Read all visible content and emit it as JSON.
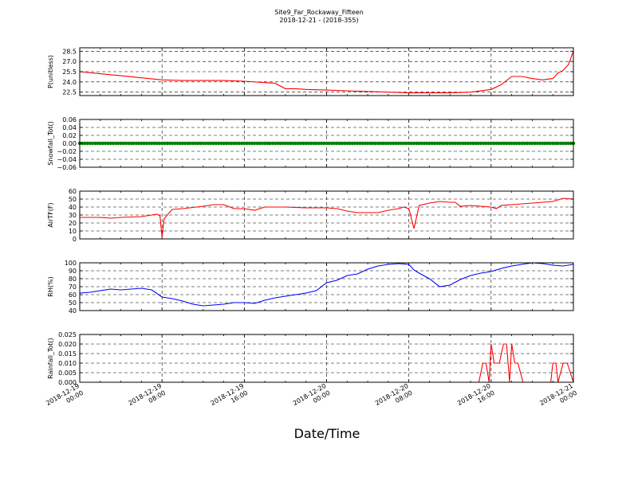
{
  "header": {
    "title": "Site9_Far_Rockaway_Fifteen",
    "subtitle": "2018-12-21 - (2018-355)"
  },
  "x_axis_label": "Date/Time",
  "x_ticks": [
    {
      "line1": "2018-12-19",
      "line2": "00:00"
    },
    {
      "line1": "2018-12-19",
      "line2": "08:00"
    },
    {
      "line1": "2018-12-19",
      "line2": "16:00"
    },
    {
      "line1": "2018-12-20",
      "line2": "00:00"
    },
    {
      "line1": "2018-12-20",
      "line2": "08:00"
    },
    {
      "line1": "2018-12-20",
      "line2": "16:00"
    },
    {
      "line1": "2018-12-21",
      "line2": "00:00"
    }
  ],
  "chart_data": [
    {
      "type": "line",
      "ylabel": "P(unitless)",
      "ylim": [
        22.0,
        29.0
      ],
      "yticks": [
        "28.5",
        "27.0",
        "25.5",
        "24.0",
        "22.5"
      ],
      "ytick_values": [
        28.5,
        27.0,
        25.5,
        24.0,
        22.5
      ],
      "color": "#ff0000",
      "grid": true,
      "x_hours": [
        0,
        2,
        4,
        6,
        8,
        10,
        12,
        14,
        16,
        18,
        19,
        20,
        21,
        22,
        24,
        26,
        28,
        30,
        32,
        34,
        36,
        38,
        40,
        41,
        42,
        43,
        44,
        45,
        46,
        46.5,
        47,
        47.5,
        48
      ],
      "values": [
        25.5,
        25.2,
        24.9,
        24.6,
        24.3,
        24.2,
        24.2,
        24.2,
        24.1,
        23.9,
        23.8,
        23.0,
        23.0,
        22.9,
        22.8,
        22.7,
        22.6,
        22.5,
        22.4,
        22.4,
        22.4,
        22.5,
        22.9,
        23.6,
        24.8,
        24.8,
        24.5,
        24.3,
        24.5,
        25.3,
        25.7,
        26.5,
        28.5
      ]
    },
    {
      "type": "line",
      "ylabel": "Snowfall_Tot()",
      "ylim": [
        -0.06,
        0.06
      ],
      "yticks": [
        "0.06",
        "0.04",
        "0.02",
        "0.00",
        "−0.02",
        "−0.04",
        "−0.06"
      ],
      "ytick_values": [
        0.06,
        0.04,
        0.02,
        0.0,
        -0.02,
        -0.04,
        -0.06
      ],
      "color": "#008000",
      "grid": true,
      "marker": "circle",
      "x_hours": [
        0,
        48
      ],
      "values": [
        0.0,
        0.0
      ]
    },
    {
      "type": "line",
      "ylabel": "AirTF(F)",
      "ylim": [
        0,
        60
      ],
      "yticks": [
        "60",
        "50",
        "40",
        "30",
        "20",
        "10",
        "0"
      ],
      "ytick_values": [
        60,
        50,
        40,
        30,
        20,
        10,
        0
      ],
      "color": "#ff0000",
      "grid": true,
      "x_hours": [
        0,
        2,
        3,
        4,
        6,
        7,
        7.5,
        7.8,
        8.0,
        8.2,
        8.5,
        9,
        10,
        12,
        13,
        14,
        15,
        16,
        17,
        18,
        19,
        20,
        22,
        24,
        25,
        26,
        27,
        28,
        29,
        30,
        31,
        31.5,
        32,
        32.5,
        33,
        34,
        35,
        36,
        36.5,
        37,
        38,
        39,
        40,
        40.5,
        41,
        42,
        43,
        44,
        45,
        46,
        47,
        48
      ],
      "values": [
        27,
        27,
        26,
        27,
        28,
        30,
        31,
        29,
        2,
        25,
        30,
        37,
        38,
        41,
        43,
        43,
        38,
        38,
        36,
        40,
        40,
        40,
        39,
        39,
        38,
        35,
        33,
        33,
        33,
        36,
        38,
        40,
        38,
        13,
        42,
        45,
        47,
        46,
        46,
        41,
        42,
        41,
        40,
        38,
        42,
        43,
        44,
        45,
        46,
        47,
        51,
        50
      ]
    },
    {
      "type": "line",
      "ylabel": "RH(%)",
      "ylim": [
        40,
        100
      ],
      "yticks": [
        "100",
        "90",
        "80",
        "70",
        "60",
        "50",
        "40"
      ],
      "ytick_values": [
        100,
        90,
        80,
        70,
        60,
        50,
        40
      ],
      "color": "#0000ff",
      "grid": true,
      "x_hours": [
        0,
        1,
        2,
        3,
        4,
        5,
        6,
        7,
        8,
        9,
        10,
        11,
        12,
        13,
        14,
        15,
        16,
        17,
        18,
        19,
        20,
        21,
        22,
        23,
        24,
        25,
        26,
        27,
        28,
        29,
        30,
        31,
        32,
        32.5,
        33,
        34,
        35,
        36,
        37,
        38,
        39,
        40,
        41,
        42,
        43,
        44,
        45,
        46,
        47,
        48
      ],
      "values": [
        62,
        63,
        65,
        67,
        66,
        67,
        68,
        66,
        57,
        55,
        52,
        48,
        46,
        47,
        48,
        50,
        50,
        49,
        53,
        56,
        58,
        60,
        62,
        65,
        75,
        78,
        84,
        86,
        92,
        96,
        98,
        99,
        98,
        91,
        87,
        80,
        70,
        72,
        79,
        84,
        87,
        89,
        93,
        96,
        98,
        100,
        99,
        97,
        96,
        98
      ]
    },
    {
      "type": "line",
      "ylabel": "Rainfall_Tot()",
      "ylim": [
        0.0,
        0.025
      ],
      "yticks": [
        "0.025",
        "0.020",
        "0.015",
        "0.010",
        "0.005",
        "0.000"
      ],
      "ytick_values": [
        0.025,
        0.02,
        0.015,
        0.01,
        0.005,
        0.0
      ],
      "color": "#ff0000",
      "grid": true,
      "x_hours": [
        0,
        38.8,
        39.2,
        39.5,
        39.8,
        40.0,
        40.3,
        40.8,
        41.2,
        41.5,
        41.8,
        42.0,
        42.3,
        42.6,
        43.1,
        45.8,
        46.0,
        46.3,
        46.5,
        47.0,
        47.4,
        48.0
      ],
      "values": [
        0.0,
        0.0,
        0.01,
        0.01,
        0.0,
        0.02,
        0.01,
        0.01,
        0.02,
        0.02,
        0.0,
        0.02,
        0.01,
        0.01,
        0.0,
        0.0,
        0.01,
        0.01,
        0.0,
        0.01,
        0.01,
        0.0
      ]
    }
  ]
}
